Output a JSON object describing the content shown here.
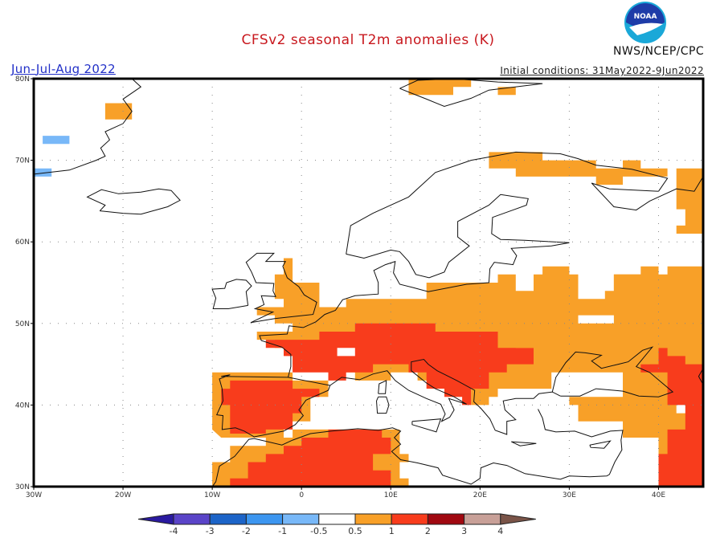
{
  "header": {
    "title": "CFSv2 seasonal T2m anomalies (K)",
    "season": "Jun-Jul-Aug 2022",
    "initial_conditions": "Initial conditions: 31May2022-9Jun2022",
    "agency": "NWS/NCEP/CPC",
    "logo_text": "NOAA"
  },
  "chart_data": {
    "type": "heatmap",
    "title": "CFSv2 seasonal T2m anomalies (K)",
    "subtitle": "Jun-Jul-Aug 2022",
    "units": "K",
    "xlim": [
      -30,
      45
    ],
    "ylim": [
      30,
      80
    ],
    "xticks": [
      {
        "value": -30,
        "label": "30W"
      },
      {
        "value": -20,
        "label": "20W"
      },
      {
        "value": -10,
        "label": "10W"
      },
      {
        "value": 0,
        "label": "0"
      },
      {
        "value": 10,
        "label": "10E"
      },
      {
        "value": 20,
        "label": "20E"
      },
      {
        "value": 30,
        "label": "30E"
      },
      {
        "value": 40,
        "label": "40E"
      }
    ],
    "yticks": [
      {
        "value": 30,
        "label": "30N"
      },
      {
        "value": 40,
        "label": "40N"
      },
      {
        "value": 50,
        "label": "50N"
      },
      {
        "value": 60,
        "label": "60N"
      },
      {
        "value": 70,
        "label": "70N"
      },
      {
        "value": 80,
        "label": "80N"
      }
    ],
    "grid": true,
    "colorbar": {
      "labels": [
        "-4",
        "-3",
        "-2",
        "-1",
        "-0.5",
        "0.5",
        "1",
        "2",
        "3",
        "4"
      ],
      "low_extend_color": "#2a1aa0",
      "high_extend_color": "#7a5448",
      "bins": [
        {
          "range": "-4 to -3",
          "color": "#5a44c8"
        },
        {
          "range": "-3 to -2",
          "color": "#1c64c8"
        },
        {
          "range": "-2 to -1",
          "color": "#3c96f0"
        },
        {
          "range": "-1 to -0.5",
          "color": "#78b8f8"
        },
        {
          "range": "-0.5 to 0.5",
          "color": "#ffffff"
        },
        {
          "range": "0.5 to 1",
          "color": "#f8a028"
        },
        {
          "range": "1 to 2",
          "color": "#f83c1c"
        },
        {
          "range": "2 to 3",
          "color": "#a00810"
        },
        {
          "range": "3 to 4",
          "color": "#c8a098"
        }
      ]
    },
    "regions": [
      {
        "name": "Iberia",
        "level": "0.5-1",
        "poly": [
          [
            -9,
            44
          ],
          [
            -1,
            44
          ],
          [
            -1,
            43
          ],
          [
            3,
            43
          ],
          [
            3,
            41
          ],
          [
            1,
            41
          ],
          [
            1,
            38
          ],
          [
            -2,
            38
          ],
          [
            -2,
            36
          ],
          [
            -9,
            36
          ],
          [
            -10,
            37
          ],
          [
            -10,
            44
          ]
        ]
      },
      {
        "name": "Iberia-core",
        "level": "1-2",
        "poly": [
          [
            -8,
            43
          ],
          [
            -1,
            43
          ],
          [
            -1,
            42
          ],
          [
            2,
            42
          ],
          [
            2,
            41
          ],
          [
            0,
            41
          ],
          [
            0,
            39
          ],
          [
            -1,
            39
          ],
          [
            -1,
            37
          ],
          [
            -4,
            37
          ],
          [
            -4,
            36.5
          ],
          [
            -8,
            36.5
          ],
          [
            -8,
            40
          ],
          [
            -9,
            40
          ],
          [
            -9,
            42
          ],
          [
            -8,
            42
          ]
        ]
      },
      {
        "name": "France-UK",
        "level": "0.5-1",
        "poly": [
          [
            -2,
            58
          ],
          [
            -1,
            58
          ],
          [
            -1,
            55
          ],
          [
            2,
            55
          ],
          [
            2,
            52
          ],
          [
            5,
            52
          ],
          [
            5,
            53
          ],
          [
            14,
            53
          ],
          [
            14,
            55
          ],
          [
            22,
            55
          ],
          [
            22,
            56
          ],
          [
            24,
            56
          ],
          [
            24,
            54
          ],
          [
            29,
            54
          ],
          [
            29,
            52
          ],
          [
            35,
            52
          ],
          [
            35,
            56
          ],
          [
            41,
            56
          ],
          [
            41,
            57
          ],
          [
            45,
            57
          ],
          [
            45,
            42
          ],
          [
            42,
            42
          ],
          [
            42,
            39
          ],
          [
            45,
            39
          ],
          [
            45,
            30
          ],
          [
            40,
            30
          ],
          [
            40,
            36
          ],
          [
            36,
            36
          ],
          [
            36,
            38
          ],
          [
            31,
            38
          ],
          [
            31,
            40
          ],
          [
            26,
            40
          ],
          [
            26,
            41
          ],
          [
            21,
            41
          ],
          [
            21,
            40
          ],
          [
            19,
            40
          ],
          [
            19,
            42
          ],
          [
            16,
            42
          ],
          [
            16,
            43
          ],
          [
            13,
            43
          ],
          [
            13,
            44
          ],
          [
            10,
            44
          ],
          [
            10,
            43
          ],
          [
            6,
            43
          ],
          [
            6,
            44
          ],
          [
            3,
            44
          ],
          [
            3,
            45
          ],
          [
            -1,
            45
          ],
          [
            -1,
            47
          ],
          [
            -3,
            47
          ],
          [
            -3,
            48
          ],
          [
            -5,
            48
          ],
          [
            -5,
            49
          ],
          [
            -1,
            49
          ],
          [
            -1,
            50
          ],
          [
            -3,
            50
          ],
          [
            -3,
            51
          ],
          [
            -5,
            51
          ],
          [
            -5,
            52
          ],
          [
            -2,
            52
          ],
          [
            -2,
            53
          ],
          [
            -3,
            53
          ],
          [
            -3,
            56
          ],
          [
            -2,
            56
          ]
        ]
      },
      {
        "name": "Central-core",
        "level": "1-2",
        "poly": [
          [
            -4,
            48
          ],
          [
            2,
            48
          ],
          [
            2,
            49
          ],
          [
            6,
            49
          ],
          [
            6,
            50
          ],
          [
            15,
            50
          ],
          [
            15,
            49
          ],
          [
            22,
            49
          ],
          [
            22,
            47
          ],
          [
            26,
            47
          ],
          [
            26,
            45
          ],
          [
            23,
            45
          ],
          [
            23,
            44
          ],
          [
            21,
            44
          ],
          [
            21,
            42
          ],
          [
            19,
            42
          ],
          [
            19,
            40
          ],
          [
            18,
            40
          ],
          [
            18,
            41
          ],
          [
            16,
            41
          ],
          [
            16,
            42
          ],
          [
            14,
            42
          ],
          [
            14,
            44
          ],
          [
            12,
            44
          ],
          [
            12,
            45
          ],
          [
            8,
            45
          ],
          [
            8,
            44
          ],
          [
            5,
            44
          ],
          [
            5,
            43
          ],
          [
            3,
            43
          ],
          [
            3,
            44
          ],
          [
            -1,
            44
          ],
          [
            -1,
            46
          ],
          [
            -2,
            46
          ],
          [
            -2,
            47
          ],
          [
            -4,
            47
          ]
        ]
      },
      {
        "name": "N-Africa",
        "level": "0.5-1",
        "poly": [
          [
            -10,
            30
          ],
          [
            -10,
            33
          ],
          [
            -8,
            33
          ],
          [
            -8,
            35
          ],
          [
            -4,
            35
          ],
          [
            -4,
            36
          ],
          [
            -1,
            36
          ],
          [
            -1,
            37
          ],
          [
            11,
            37
          ],
          [
            11,
            34
          ],
          [
            12,
            34
          ],
          [
            12,
            33
          ],
          [
            11,
            33
          ],
          [
            11,
            31
          ],
          [
            12,
            31
          ],
          [
            12,
            30
          ]
        ]
      },
      {
        "name": "N-Africa-core",
        "level": "1-2",
        "poly": [
          [
            -8,
            30
          ],
          [
            -8,
            31
          ],
          [
            -6,
            31
          ],
          [
            -6,
            33
          ],
          [
            -4,
            33
          ],
          [
            -4,
            34
          ],
          [
            -2,
            34
          ],
          [
            -2,
            35
          ],
          [
            0,
            35
          ],
          [
            0,
            36
          ],
          [
            3,
            36
          ],
          [
            3,
            37
          ],
          [
            9,
            37
          ],
          [
            9,
            36
          ],
          [
            10,
            36
          ],
          [
            10,
            34
          ],
          [
            8,
            34
          ],
          [
            8,
            32
          ],
          [
            10,
            32
          ],
          [
            10,
            30
          ]
        ]
      },
      {
        "name": "Caucasus-core",
        "level": "1-2",
        "poly": [
          [
            39,
            47
          ],
          [
            41,
            47
          ],
          [
            41,
            46
          ],
          [
            43,
            46
          ],
          [
            43,
            45
          ],
          [
            45,
            45
          ],
          [
            45,
            30
          ],
          [
            40,
            30
          ],
          [
            40,
            34
          ],
          [
            41,
            34
          ],
          [
            41,
            37
          ],
          [
            43,
            37
          ],
          [
            43,
            40
          ],
          [
            41,
            40
          ],
          [
            41,
            44
          ],
          [
            38,
            44
          ],
          [
            38,
            45
          ],
          [
            39,
            45
          ]
        ]
      },
      {
        "name": "Fennoscandia-N",
        "level": "0.5-1",
        "poly": [
          [
            21,
            71
          ],
          [
            27,
            71
          ],
          [
            27,
            70
          ],
          [
            33,
            70
          ],
          [
            33,
            69
          ],
          [
            36,
            69
          ],
          [
            36,
            70
          ],
          [
            38,
            70
          ],
          [
            38,
            69
          ],
          [
            41,
            69
          ],
          [
            41,
            68
          ],
          [
            36,
            68
          ],
          [
            36,
            67
          ],
          [
            33,
            67
          ],
          [
            33,
            68
          ],
          [
            24,
            68
          ],
          [
            24,
            69
          ],
          [
            21,
            69
          ]
        ]
      },
      {
        "name": "Russia-NE",
        "level": "0.5-1",
        "poly": [
          [
            42,
            69
          ],
          [
            45,
            69
          ],
          [
            45,
            61
          ],
          [
            42,
            61
          ],
          [
            42,
            62
          ],
          [
            43,
            62
          ],
          [
            43,
            64
          ],
          [
            42,
            64
          ]
        ]
      },
      {
        "name": "Ukraine-Russia",
        "level": "0.5-1",
        "poly": [
          [
            26,
            56
          ],
          [
            27,
            56
          ],
          [
            27,
            57
          ],
          [
            30,
            57
          ],
          [
            30,
            56
          ],
          [
            31,
            56
          ],
          [
            31,
            53
          ],
          [
            34,
            53
          ],
          [
            34,
            54
          ],
          [
            35,
            54
          ],
          [
            35,
            56
          ],
          [
            38,
            56
          ],
          [
            38,
            57
          ],
          [
            40,
            57
          ],
          [
            40,
            55
          ],
          [
            42,
            55
          ],
          [
            42,
            53
          ],
          [
            45,
            53
          ],
          [
            45,
            47
          ],
          [
            40,
            47
          ],
          [
            40,
            45
          ],
          [
            36,
            45
          ],
          [
            36,
            46
          ],
          [
            33,
            46
          ],
          [
            33,
            45
          ],
          [
            28,
            45
          ],
          [
            28,
            44
          ],
          [
            26,
            44
          ],
          [
            26,
            47
          ],
          [
            24,
            47
          ],
          [
            24,
            49
          ],
          [
            22,
            49
          ],
          [
            22,
            52
          ],
          [
            26,
            52
          ]
        ]
      },
      {
        "name": "Svalbard",
        "level": "0.5-1",
        "poly": [
          [
            12,
            80
          ],
          [
            19,
            80
          ],
          [
            19,
            79
          ],
          [
            24,
            79
          ],
          [
            24,
            78
          ],
          [
            22,
            78
          ],
          [
            22,
            79
          ],
          [
            17,
            79
          ],
          [
            17,
            78
          ],
          [
            12,
            78
          ]
        ]
      },
      {
        "name": "Greenland-E",
        "level": "0.5-1",
        "poly": [
          [
            -22,
            77
          ],
          [
            -19,
            77
          ],
          [
            -19,
            75
          ],
          [
            -22,
            75
          ]
        ]
      },
      {
        "name": "Greenland-SE",
        "level": "-1--0.5",
        "poly": [
          [
            -29,
            73
          ],
          [
            -26,
            73
          ],
          [
            -26,
            72
          ],
          [
            -29,
            72
          ]
        ]
      },
      {
        "name": "Greenland-S",
        "level": "-1--0.5",
        "poly": [
          [
            -30,
            69
          ],
          [
            -28,
            69
          ],
          [
            -28,
            68
          ],
          [
            -30,
            68
          ]
        ]
      }
    ]
  },
  "map_labels": {
    "xtick_labels": [
      "30W",
      "20W",
      "10W",
      "0",
      "10E",
      "20E",
      "30E",
      "40E"
    ],
    "ytick_labels": [
      "30N",
      "40N",
      "50N",
      "60N",
      "70N",
      "80N"
    ]
  }
}
